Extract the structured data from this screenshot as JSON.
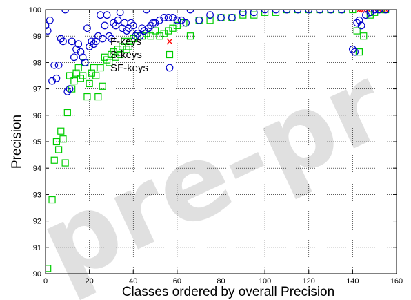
{
  "watermark": "pre-pr",
  "chart_data": {
    "type": "scatter",
    "xlabel": "Classes  ordered by overall Precision",
    "ylabel": "Precision",
    "xlim": [
      0,
      160
    ],
    "ylim": [
      90,
      100
    ],
    "xticks": [
      0,
      20,
      40,
      60,
      80,
      100,
      120,
      140,
      160
    ],
    "yticks": [
      90,
      91,
      92,
      93,
      94,
      95,
      96,
      97,
      98,
      99,
      100
    ],
    "grid": true,
    "legend_position": "top-left",
    "series": [
      {
        "name": "F-keys",
        "marker": "x",
        "color": "#ff0000",
        "x": [
          143,
          144,
          145,
          147,
          150,
          152,
          154,
          155
        ],
        "y": [
          100,
          100,
          100,
          100,
          100,
          100,
          100,
          100
        ]
      },
      {
        "name": "S-keys",
        "marker": "square",
        "color": "#00cc00",
        "x": [
          1,
          3,
          4,
          5,
          6,
          7,
          8,
          9,
          10,
          11,
          12,
          13,
          14,
          15,
          16,
          17,
          18,
          19,
          20,
          21,
          22,
          23,
          24,
          25,
          26,
          27,
          28,
          29,
          30,
          31,
          32,
          33,
          34,
          35,
          36,
          37,
          38,
          39,
          40,
          42,
          44,
          46,
          48,
          50,
          52,
          54,
          56,
          58,
          60,
          63,
          66,
          70,
          75,
          80,
          85,
          90,
          95,
          100,
          105,
          110,
          115,
          120,
          125,
          130,
          135,
          140,
          142,
          143,
          145,
          148,
          150,
          153,
          155
        ],
        "y": [
          90.2,
          92.8,
          94.3,
          95.0,
          94.7,
          95.4,
          95.1,
          94.2,
          96.1,
          97.5,
          97.0,
          97.3,
          97.6,
          97.8,
          97.4,
          97.5,
          98.0,
          96.7,
          97.2,
          97.6,
          97.8,
          97.5,
          96.7,
          97.8,
          97.1,
          98.2,
          98.1,
          98.0,
          98.3,
          98.4,
          98.2,
          98.5,
          98.3,
          98.6,
          98.8,
          98.5,
          98.6,
          98.8,
          98.9,
          99.0,
          99.0,
          99.1,
          99.0,
          99.2,
          99.0,
          99.1,
          99.2,
          99.3,
          99.4,
          99.5,
          99.0,
          99.6,
          99.6,
          99.7,
          99.7,
          99.8,
          99.8,
          99.9,
          99.9,
          100.0,
          100.0,
          100.0,
          100.0,
          100.0,
          100.0,
          100.0,
          99.2,
          98.4,
          99.0,
          99.8,
          99.9,
          100.0,
          100.0
        ]
      },
      {
        "name": "SF-keys",
        "marker": "circle",
        "color": "#0000cc",
        "x": [
          0,
          1,
          2,
          3,
          4,
          5,
          6,
          7,
          8,
          9,
          10,
          11,
          12,
          13,
          14,
          15,
          16,
          17,
          18,
          19,
          20,
          21,
          22,
          23,
          24,
          25,
          26,
          27,
          28,
          29,
          30,
          31,
          32,
          33,
          34,
          35,
          36,
          37,
          38,
          39,
          40,
          41,
          42,
          43,
          44,
          45,
          46,
          47,
          48,
          49,
          50,
          52,
          54,
          56,
          58,
          60,
          62,
          64,
          66,
          70,
          75,
          80,
          85,
          90,
          95,
          100,
          105,
          110,
          115,
          120,
          125,
          130,
          135,
          140,
          141,
          142,
          143,
          144,
          146,
          148,
          150,
          152,
          155
        ],
        "y": [
          99.4,
          99.2,
          99.6,
          97.3,
          97.9,
          97.4,
          97.9,
          98.9,
          98.8,
          100.0,
          96.9,
          97.0,
          98.8,
          98.2,
          98.5,
          98.7,
          98.4,
          98.2,
          98.0,
          99.3,
          98.6,
          98.8,
          98.7,
          98.8,
          99.0,
          99.8,
          98.9,
          99.4,
          99.8,
          99.0,
          98.9,
          99.5,
          99.4,
          99.6,
          99.9,
          99.3,
          99.5,
          99.2,
          99.3,
          99.5,
          99.4,
          99.0,
          99.1,
          99.0,
          99.3,
          99.2,
          100.0,
          99.3,
          99.4,
          99.5,
          99.5,
          99.6,
          99.7,
          99.7,
          99.7,
          99.6,
          99.6,
          99.5,
          100.0,
          99.6,
          99.8,
          99.7,
          99.7,
          99.9,
          99.9,
          100.0,
          100.0,
          100.0,
          100.0,
          100.0,
          100.0,
          100.0,
          100.0,
          98.5,
          98.4,
          99.5,
          99.6,
          99.4,
          99.8,
          99.9,
          100.0,
          100.0,
          100.0
        ]
      }
    ]
  }
}
